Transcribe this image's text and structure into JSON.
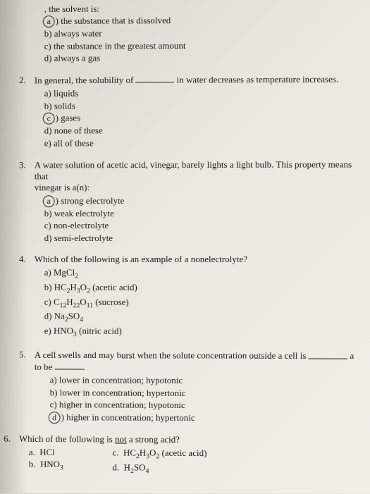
{
  "q1": {
    "stem_fragment": ", the solvent is:",
    "a": "the substance that is dissolved",
    "b": "always water",
    "c": "the substance in the greatest amount",
    "d": "always a gas"
  },
  "q2": {
    "num": "2.",
    "stem_pre": "In general, the solubility of ",
    "stem_post": " in water decreases as temperature increases.",
    "a": "liquids",
    "b": "solids",
    "c": "gases",
    "d": "none of these",
    "e": "all of these"
  },
  "q3": {
    "num": "3.",
    "stem_l1": "A water solution of acetic acid, vinegar, barely lights a light bulb. This property means that",
    "stem_l2": "vinegar is a(n):",
    "a": "strong electrolyte",
    "b": "weak electrolyte",
    "c": "non-electrolyte",
    "d": "semi-electrolyte"
  },
  "q4": {
    "num": "4.",
    "stem": "Which of the following is an example of a nonelectrolyte?",
    "a_pre": "MgCl",
    "a_sub": "2",
    "b_pre": "HC",
    "b_s1": "2",
    "b_mid": "H",
    "b_s2": "3",
    "b_mid2": "O",
    "b_s3": "2",
    "b_note": "  (acetic acid)",
    "c_pre": "C",
    "c_s1": "12",
    "c_mid": "H",
    "c_s2": "22",
    "c_mid2": "O",
    "c_s3": "11",
    "c_note": "  (sucrose)",
    "d_pre": "Na",
    "d_s1": "2",
    "d_mid": "SO",
    "d_s2": "4",
    "e_pre": "HNO",
    "e_s1": "3",
    "e_note": " (nitric acid)"
  },
  "q5": {
    "num": "5.",
    "stem_l1_pre": "A cell swells and may burst when the solute concentration outside a cell is ",
    "stem_l1_post": " a",
    "stem_l2_pre": "to be ",
    "stem_l2_post": ".",
    "a": "lower in concentration; hypotonic",
    "b": "lower in concentration; hypertonic",
    "c": "higher in concentration; hypotonic",
    "d": "higher in concentration; hypertonic"
  },
  "q6": {
    "num": "6.",
    "stem_pre": "Which of the following is ",
    "stem_not": "not",
    "stem_post": " a strong acid?",
    "a": "HCl",
    "b_pre": "HNO",
    "b_s1": "3",
    "c_pre": "HC",
    "c_s1": "2",
    "c_mid": "H",
    "c_s2": "3",
    "c_mid2": "O",
    "c_s3": "2",
    "c_note": " (acetic acid)",
    "d_pre": "H",
    "d_s1": "2",
    "d_mid": "SO",
    "d_s2": "4"
  }
}
